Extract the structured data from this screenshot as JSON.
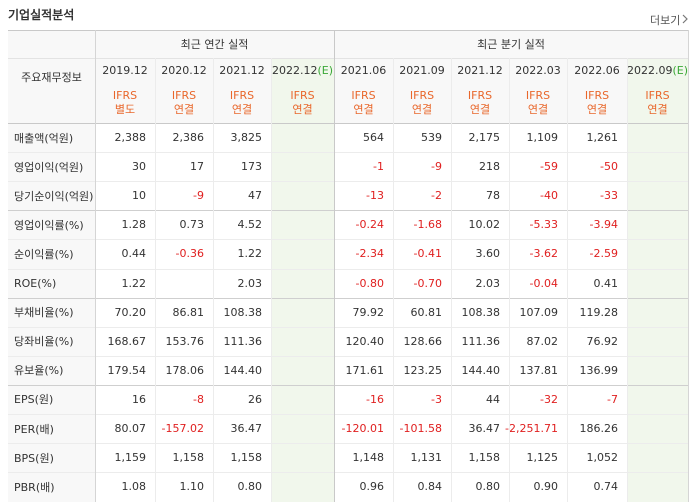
{
  "header": {
    "title": "기업실적분석",
    "more": "더보기"
  },
  "table": {
    "corner": "주요재무정보",
    "groups": [
      "최근 연간 실적",
      "최근 분기 실적"
    ],
    "columns": [
      {
        "date": "2019.12",
        "standard": "IFRS",
        "basis": "별도"
      },
      {
        "date": "2020.12",
        "standard": "IFRS",
        "basis": "연결"
      },
      {
        "date": "2021.12",
        "standard": "IFRS",
        "basis": "연결"
      },
      {
        "date": "2022.12",
        "estimate": "(E)",
        "standard": "IFRS",
        "basis": "연결"
      },
      {
        "date": "2021.06",
        "standard": "IFRS",
        "basis": "연결"
      },
      {
        "date": "2021.09",
        "standard": "IFRS",
        "basis": "연결"
      },
      {
        "date": "2021.12",
        "standard": "IFRS",
        "basis": "연결"
      },
      {
        "date": "2022.03",
        "standard": "IFRS",
        "basis": "연결"
      },
      {
        "date": "2022.06",
        "standard": "IFRS",
        "basis": "연결"
      },
      {
        "date": "2022.09",
        "estimate": "(E)",
        "standard": "IFRS",
        "basis": "연결"
      }
    ],
    "rows": [
      {
        "label": "매출액(억원)",
        "cells": [
          "2,388",
          "2,386",
          "3,825",
          null,
          "564",
          "539",
          "2,175",
          "1,109",
          "1,261",
          null
        ]
      },
      {
        "label": "영업이익(억원)",
        "cells": [
          "30",
          "17",
          "173",
          null,
          "-1",
          "-9",
          "218",
          "-59",
          "-50",
          null
        ]
      },
      {
        "label": "당기순이익(억원)",
        "cells": [
          "10",
          "-9",
          "47",
          null,
          "-13",
          "-2",
          "78",
          "-40",
          "-33",
          null
        ]
      },
      {
        "label": "영업이익률(%)",
        "cells": [
          "1.28",
          "0.73",
          "4.52",
          null,
          "-0.24",
          "-1.68",
          "10.02",
          "-5.33",
          "-3.94",
          null
        ]
      },
      {
        "label": "순이익률(%)",
        "cells": [
          "0.44",
          "-0.36",
          "1.22",
          null,
          "-2.34",
          "-0.41",
          "3.60",
          "-3.62",
          "-2.59",
          null
        ]
      },
      {
        "label": "ROE(%)",
        "cells": [
          "1.22",
          null,
          "2.03",
          null,
          "-0.80",
          "-0.70",
          "2.03",
          "-0.04",
          "0.41",
          null
        ]
      },
      {
        "label": "부채비율(%)",
        "cells": [
          "70.20",
          "86.81",
          "108.38",
          null,
          "79.92",
          "60.81",
          "108.38",
          "107.09",
          "119.28",
          null
        ]
      },
      {
        "label": "당좌비율(%)",
        "cells": [
          "168.67",
          "153.76",
          "111.36",
          null,
          "120.40",
          "128.66",
          "111.36",
          "87.02",
          "76.92",
          null
        ]
      },
      {
        "label": "유보율(%)",
        "cells": [
          "179.54",
          "178.06",
          "144.40",
          null,
          "171.61",
          "123.25",
          "144.40",
          "137.81",
          "136.99",
          null
        ]
      },
      {
        "label": "EPS(원)",
        "cells": [
          "16",
          "-8",
          "26",
          null,
          "-16",
          "-3",
          "44",
          "-32",
          "-7",
          null
        ]
      },
      {
        "label": "PER(배)",
        "cells": [
          "80.07",
          "-157.02",
          "36.47",
          null,
          "-120.01",
          "-101.58",
          "36.47",
          "-2,251.71",
          "186.26",
          null
        ]
      },
      {
        "label": "BPS(원)",
        "cells": [
          "1,159",
          "1,158",
          "1,158",
          null,
          "1,148",
          "1,131",
          "1,158",
          "1,125",
          "1,052",
          null
        ]
      },
      {
        "label": "PBR(배)",
        "cells": [
          "1.08",
          "1.10",
          "0.80",
          null,
          "0.96",
          "0.84",
          "0.80",
          "0.90",
          "0.74",
          null
        ]
      }
    ]
  }
}
